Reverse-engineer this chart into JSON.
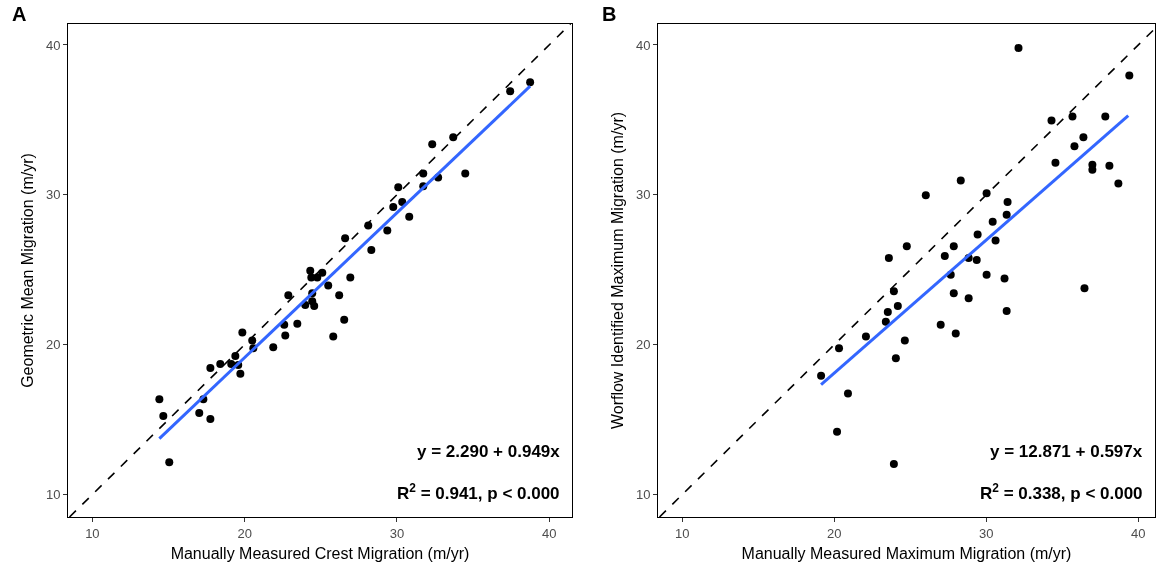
{
  "chart_data": [
    {
      "type": "scatter",
      "title": "A",
      "xlabel": "Manually Measured Crest Migration (m/yr)",
      "ylabel": "Geometric Mean Migration (m/yr)",
      "xlim": [
        8.4,
        41.5
      ],
      "ylim": [
        8.5,
        41.4
      ],
      "xticks": [
        10,
        20,
        30,
        40
      ],
      "yticks": [
        10,
        20,
        30,
        40
      ],
      "annotations": [
        "y = 2.290 + 0.949x",
        "R$^{2}$ = 0.941, p < 0.000"
      ],
      "series": [
        {
          "marker": "circle",
          "color": "#000000",
          "x": [
            14.4,
            14.66,
            15.05,
            17.02,
            17.29,
            17.75,
            17.75,
            18.4,
            19.12,
            19.39,
            19.58,
            19.72,
            19.85,
            20.5,
            20.57,
            21.88,
            22.6,
            22.67,
            22.87,
            23.46,
            23.98,
            24.31,
            24.38,
            24.44,
            24.44,
            24.57,
            24.77,
            25.1,
            25.49,
            25.82,
            26.21,
            26.54,
            26.6,
            26.94,
            28.12,
            28.32,
            29.37,
            29.76,
            30.09,
            30.35,
            30.81,
            31.73,
            31.73,
            32.32,
            32.71,
            33.7,
            34.49,
            37.44,
            38.75
          ],
          "values": [
            16.35,
            15.24,
            12.16,
            15.44,
            16.35,
            15.04,
            18.45,
            18.71,
            18.71,
            19.24,
            18.65,
            18.06,
            20.81,
            20.28,
            19.76,
            19.83,
            21.33,
            20.61,
            23.3,
            21.4,
            22.64,
            24.93,
            24.48,
            23.43,
            22.9,
            22.58,
            24.48,
            24.8,
            23.95,
            20.55,
            23.3,
            21.66,
            27.1,
            24.48,
            27.95,
            26.31,
            27.62,
            29.19,
            30.5,
            29.52,
            28.54,
            31.42,
            30.57,
            33.38,
            31.16,
            33.84,
            31.42,
            36.92,
            37.51
          ]
        },
        {
          "type": "line",
          "color": "#3366ff",
          "line_style": "solid",
          "x": [
            14.4,
            38.75
          ],
          "values": [
            13.73,
            37.25
          ]
        },
        {
          "type": "line",
          "color": "#000000",
          "line_style": "dashed",
          "x": [
            8.5,
            41.4
          ],
          "values": [
            8.5,
            41.4
          ]
        }
      ]
    },
    {
      "type": "scatter",
      "title": "B",
      "xlabel": "Manually Measured Maximum Migration (m/yr)",
      "ylabel": "Worflow Identified Maximum Migration (m/yr)",
      "xlim": [
        8.4,
        41.1
      ],
      "ylim": [
        8.5,
        41.4
      ],
      "xticks": [
        10,
        20,
        30,
        40
      ],
      "yticks": [
        10,
        20,
        30,
        40
      ],
      "annotations": [
        "y = 12.871 + 0.597x",
        "R$^{2}$ = 0.338, p < 0.000"
      ],
      "series": [
        {
          "marker": "circle",
          "color": "#000000",
          "x": [
            32.12,
            39.41,
            34.29,
            35.67,
            37.83,
            36.39,
            35.8,
            34.55,
            36.98,
            36.98,
            38.1,
            38.69,
            28.32,
            26.02,
            30.02,
            31.4,
            31.34,
            30.42,
            29.43,
            30.61,
            24.77,
            27.86,
            27.27,
            23.59,
            28.84,
            29.37,
            27.66,
            30.02,
            31.2,
            36.46,
            23.92,
            27.86,
            28.84,
            24.18,
            23.52,
            31.34,
            23.39,
            27.0,
            22.08,
            27.99,
            24.64,
            20.31,
            24.05,
            19.13,
            20.9,
            20.18,
            23.92
          ],
          "values": [
            39.8,
            37.97,
            34.96,
            35.22,
            35.22,
            33.84,
            33.25,
            32.14,
            32.01,
            31.68,
            31.94,
            30.76,
            30.96,
            29.98,
            30.11,
            29.52,
            28.67,
            28.21,
            27.36,
            26.96,
            26.57,
            26.57,
            25.92,
            25.79,
            25.79,
            25.65,
            24.67,
            24.67,
            24.41,
            23.76,
            23.56,
            23.43,
            23.1,
            22.58,
            22.18,
            22.25,
            21.53,
            21.33,
            20.55,
            20.74,
            20.28,
            19.76,
            19.1,
            17.93,
            16.75,
            14.19,
            12.03
          ]
        },
        {
          "type": "line",
          "color": "#3366ff",
          "line_style": "solid",
          "x": [
            19.13,
            39.34
          ],
          "values": [
            17.34,
            35.28
          ]
        },
        {
          "type": "line",
          "color": "#000000",
          "line_style": "dashed",
          "x": [
            8.5,
            41.1
          ],
          "values": [
            8.5,
            41.1
          ]
        }
      ]
    }
  ]
}
